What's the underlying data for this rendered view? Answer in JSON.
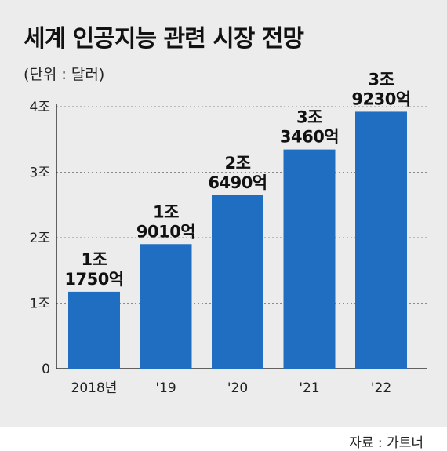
{
  "title": "세계 인공지능 관련 시장 전망",
  "unit": "(단위 : 달러)",
  "source": "자료 : 가트너",
  "colors": {
    "bar": "#1f6ec1",
    "background": "#edeced",
    "axis": "#333333",
    "grid": "#8a8a8a"
  },
  "chart_data": {
    "type": "bar",
    "title": "세계 인공지능 관련 시장 전망",
    "unit": "(단위 : 달러)",
    "categories": [
      "2018년",
      "'19",
      "'20",
      "'21",
      "'22"
    ],
    "values": [
      1.175,
      1.901,
      2.649,
      3.346,
      3.923
    ],
    "value_labels": [
      [
        "1조",
        "1750억"
      ],
      [
        "1조",
        "9010억"
      ],
      [
        "2조",
        "6490억"
      ],
      [
        "3조",
        "3460억"
      ],
      [
        "3조",
        "9230억"
      ]
    ],
    "y_ticks": [
      0,
      1,
      2,
      3,
      4
    ],
    "y_tick_labels": [
      "0",
      "1조",
      "2조",
      "3조",
      "4조"
    ],
    "ylim": [
      0,
      4
    ],
    "grid": true,
    "grid_style": "dashed horizontal",
    "legend": "none"
  }
}
